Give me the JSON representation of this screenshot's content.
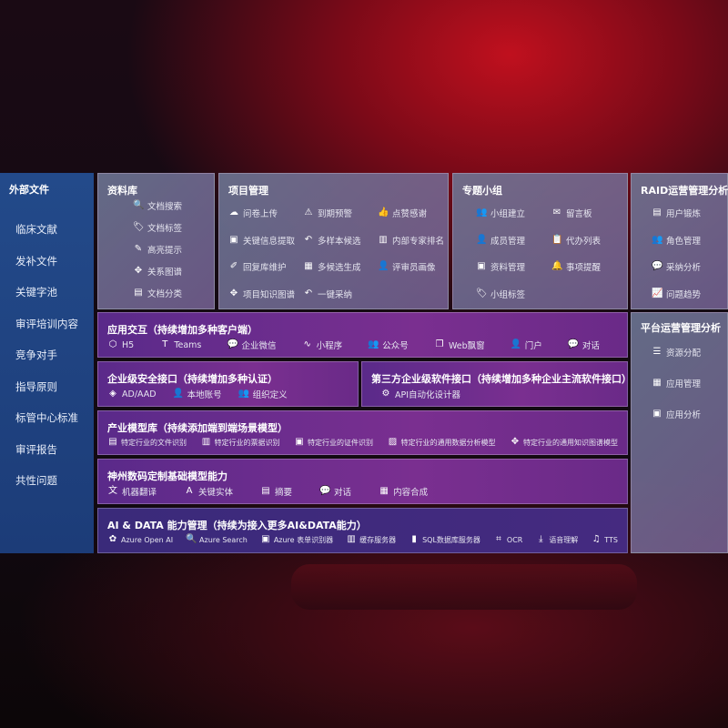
{
  "sidebar": {
    "title": "外部文件",
    "items": [
      "临床文献",
      "发补文件",
      "关键字池",
      "审评培训内容",
      "竞争对手",
      "指导原则",
      "标管中心标准",
      "审评报告",
      "共性问题"
    ]
  },
  "panels": [
    {
      "id": "library",
      "title": "资料库",
      "items": [
        [
          "文档搜索",
          "doc-search-icon",
          "🔍"
        ],
        [
          "文档标签",
          "tag-icon",
          "🏷"
        ],
        [
          "高亮提示",
          "pen-icon",
          "✎"
        ],
        [
          "关系图谱",
          "graph-icon",
          "✥"
        ],
        [
          "文档分类",
          "doc-classify-icon",
          "▤"
        ]
      ]
    },
    {
      "id": "project",
      "title": "项目管理",
      "items": [
        [
          "问卷上传",
          "cloud-upload-icon",
          "☁"
        ],
        [
          "到期预警",
          "alarm-icon",
          "⚠"
        ],
        [
          "点赞感谢",
          "thumbs-up-icon",
          "👍"
        ],
        [
          "关键信息提取",
          "extract-icon",
          "▣"
        ],
        [
          "多样本候选",
          "reply-icon",
          "↶"
        ],
        [
          "内部专家排名",
          "ranking-icon",
          "▥"
        ],
        [
          "回复库维护",
          "edit-icon",
          "✐"
        ],
        [
          "多候选生成",
          "puzzle-icon",
          "▦"
        ],
        [
          "评审员画像",
          "user-icon",
          "👤"
        ],
        [
          "项目知识图谱",
          "graph-icon",
          "✥"
        ],
        [
          "一键采纳",
          "reply-icon",
          "↶"
        ]
      ]
    },
    {
      "id": "group",
      "title": "专题小组",
      "items": [
        [
          "小组建立",
          "group-icon",
          "👥"
        ],
        [
          "留言板",
          "bbs-icon",
          "✉"
        ],
        [
          "成员管理",
          "member-icon",
          "👤"
        ],
        [
          "代办列表",
          "clipboard-icon",
          "📋"
        ],
        [
          "资料管理",
          "folder-icon",
          "▣"
        ],
        [
          "事项提醒",
          "bell-icon",
          "🔔"
        ],
        [
          "小组标签",
          "tag-icon",
          "🏷"
        ]
      ]
    },
    {
      "id": "raid",
      "title": "RAID运营管理分析",
      "items": [
        [
          "用户锻炼",
          "id-card-icon",
          "▤"
        ],
        [
          "角色管理",
          "group-icon",
          "👥"
        ],
        [
          "采纳分析",
          "qa-icon",
          "💬"
        ],
        [
          "问题趋势",
          "trend-icon",
          "📈"
        ]
      ]
    },
    {
      "id": "platform",
      "title": "平台运营管理分析",
      "items": [
        [
          "资源分配",
          "list-icon",
          "☰"
        ],
        [
          "应用管理",
          "apps-icon",
          "▦"
        ],
        [
          "应用分析",
          "analysis-icon",
          "▣"
        ]
      ]
    },
    {
      "id": "app",
      "title": "应用交互（持续增加多种客户端）",
      "items": [
        [
          "H5",
          "html5-icon",
          "⬡"
        ],
        [
          "Teams",
          "teams-icon",
          "T"
        ],
        [
          "企业微信",
          "wecom-icon",
          "💬"
        ],
        [
          "小程序",
          "miniprogram-icon",
          "∿"
        ],
        [
          "公众号",
          "official-account-icon",
          "👥"
        ],
        [
          "Web飘窗",
          "window-icon",
          "❐"
        ],
        [
          "门户",
          "portal-icon",
          "👤"
        ],
        [
          "对话",
          "chat-icon",
          "💬"
        ]
      ]
    },
    {
      "id": "security",
      "title": "企业级安全接口（持续增加多种认证）",
      "items": [
        [
          "AD/AAD",
          "ad-icon",
          "◈"
        ],
        [
          "本地账号",
          "account-icon",
          "👤"
        ],
        [
          "组织定义",
          "org-icon",
          "👥"
        ]
      ]
    },
    {
      "id": "thirdparty",
      "title": "第三方企业级软件接口（持续增加多种企业主流软件接口）",
      "items": [
        [
          "API自动化设计器",
          "api-gear-icon",
          "⚙"
        ]
      ]
    },
    {
      "id": "industry",
      "title": "产业模型库（持续添加端到端场景模型）",
      "items": [
        [
          "特定行业的文件识别",
          "file-icon",
          "▤"
        ],
        [
          "特定行业的票据识别",
          "receipt-icon",
          "▥"
        ],
        [
          "特定行业的证件识别",
          "id-card-icon",
          "▣"
        ],
        [
          "特定行业的通用数据分析模型",
          "chart-icon",
          "▨"
        ],
        [
          "特定行业的通用知识图谱模型",
          "graph-icon",
          "✥"
        ]
      ]
    },
    {
      "id": "base",
      "title": "神州数码定制基础模型能力",
      "items": [
        [
          "机器翻译",
          "translate-icon",
          "文"
        ],
        [
          "关键实体",
          "entity-icon",
          "A"
        ],
        [
          "摘要",
          "summary-icon",
          "▤"
        ],
        [
          "对话",
          "chat-icon",
          "💬"
        ],
        [
          "内容合成",
          "compose-icon",
          "▦"
        ]
      ]
    },
    {
      "id": "aidata",
      "title": "AI & DATA 能力管理（持续为接入更多AI&DATA能力）",
      "items": [
        [
          "Azure Open AI",
          "openai-icon",
          "✿"
        ],
        [
          "Azure Search",
          "search-icon",
          "🔍"
        ],
        [
          "Azure 表单识别器",
          "form-icon",
          "▣"
        ],
        [
          "缓存服务器",
          "cache-icon",
          "▥"
        ],
        [
          "SQL数据库服务器",
          "database-icon",
          "▮"
        ],
        [
          "OCR",
          "ocr-icon",
          "⌗"
        ],
        [
          "语音理解",
          "speech-icon",
          "⤓"
        ],
        [
          "TTS",
          "tts-icon",
          "♫"
        ]
      ]
    }
  ]
}
